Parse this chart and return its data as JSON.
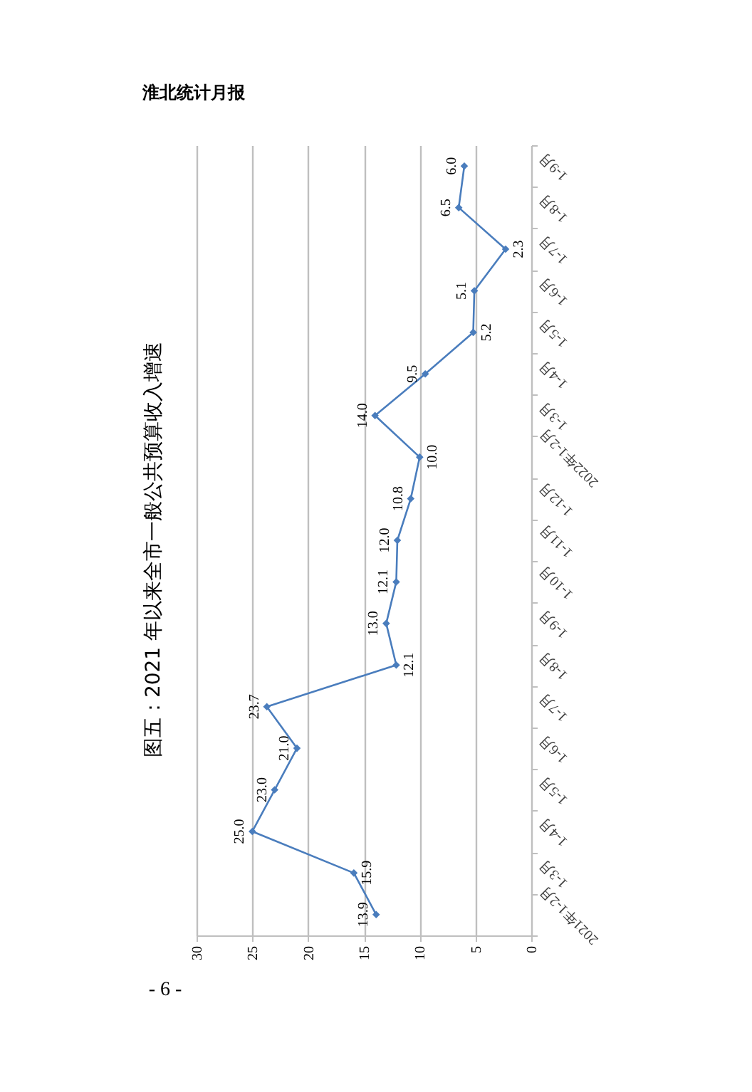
{
  "chart_data": {
    "type": "line",
    "orientation": "horizontal",
    "title": "图五：2021 年以来全市一般公共预算收入增速",
    "categories": [
      "1-9月",
      "1-8月",
      "1-7月",
      "1-6月",
      "1-5月",
      "1-4月",
      "1-3月",
      "2022年1-2月",
      "1-12月",
      "1-11月",
      "1-10月",
      "1-9月",
      "1-8月",
      "1-7月",
      "1-6月",
      "1-5月",
      "1-4月",
      "1-3月",
      "2021年1-2月"
    ],
    "values": [
      6.0,
      6.5,
      2.3,
      5.1,
      5.2,
      9.5,
      14.0,
      10.0,
      10.8,
      12.0,
      12.1,
      13.0,
      12.1,
      23.7,
      21.0,
      23.0,
      25.0,
      15.9,
      13.9
    ],
    "value_labels": [
      "6.0",
      "6.5",
      "2.3",
      "5.1",
      "5.2",
      "9.5",
      "14.0",
      "10.0",
      "10.8",
      "12.0",
      "12.1",
      "13.0",
      "12.1",
      "23.7",
      "21.0",
      "23.0",
      "25.0",
      "15.9",
      "13.9"
    ],
    "color": "#4a7dbd",
    "marker": "diamond",
    "line_style": "solid",
    "xlim": [
      30,
      0
    ],
    "xticks": [
      0,
      5,
      10,
      15,
      20,
      25,
      30
    ],
    "grid": "x",
    "annotations": [
      "淮北统计月报",
      "- 6 -"
    ]
  }
}
